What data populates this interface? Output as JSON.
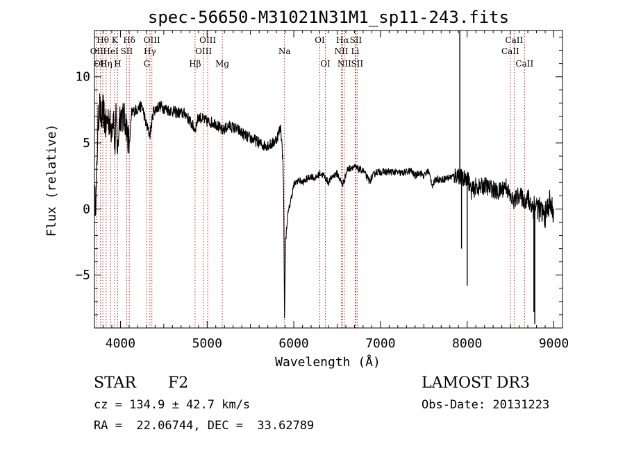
{
  "chart_data": {
    "type": "line",
    "title": "spec-56650-M31021N31M1_sp11-243.fits",
    "xlabel": "Wavelength (Å)",
    "ylabel": "Flux (relative)",
    "xlim": [
      3700,
      9100
    ],
    "ylim": [
      -9,
      13.5
    ],
    "xticks": [
      4000,
      5000,
      6000,
      7000,
      8000,
      9000
    ],
    "xtick_labels": [
      "4000",
      "5000",
      "6000",
      "7000",
      "8000",
      "9000"
    ],
    "yticks": [
      -5,
      0,
      5,
      10
    ],
    "ytick_labels": [
      "−5",
      "0",
      "5",
      "10"
    ],
    "spectrum_anchors": [
      [
        3700,
        0.5
      ],
      [
        3720,
        1.0
      ],
      [
        3740,
        6.5
      ],
      [
        3760,
        7.8
      ],
      [
        3780,
        6.6
      ],
      [
        3800,
        7.5
      ],
      [
        3830,
        6.2
      ],
      [
        3860,
        7.0
      ],
      [
        3890,
        6.0
      ],
      [
        3920,
        7.2
      ],
      [
        3934,
        4.5
      ],
      [
        3950,
        6.9
      ],
      [
        3968,
        4.2
      ],
      [
        3990,
        7.2
      ],
      [
        4020,
        7.0
      ],
      [
        4060,
        6.6
      ],
      [
        4102,
        4.8
      ],
      [
        4130,
        7.3
      ],
      [
        4200,
        7.6
      ],
      [
        4250,
        7.8
      ],
      [
        4300,
        6.3
      ],
      [
        4340,
        5.6
      ],
      [
        4380,
        7.4
      ],
      [
        4450,
        7.8
      ],
      [
        4550,
        7.5
      ],
      [
        4650,
        7.3
      ],
      [
        4750,
        7.2
      ],
      [
        4861,
        6.0
      ],
      [
        4900,
        7.0
      ],
      [
        5000,
        6.6
      ],
      [
        5100,
        6.5
      ],
      [
        5172,
        5.9
      ],
      [
        5250,
        6.3
      ],
      [
        5350,
        6.0
      ],
      [
        5450,
        5.5
      ],
      [
        5550,
        5.2
      ],
      [
        5650,
        4.8
      ],
      [
        5750,
        4.9
      ],
      [
        5800,
        5.3
      ],
      [
        5850,
        6.2
      ],
      [
        5880,
        3.0
      ],
      [
        5893,
        -8.0
      ],
      [
        5905,
        -2.5
      ],
      [
        5930,
        -0.5
      ],
      [
        5960,
        0.5
      ],
      [
        6000,
        1.8
      ],
      [
        6050,
        2.2
      ],
      [
        6100,
        2.0
      ],
      [
        6200,
        2.5
      ],
      [
        6250,
        2.3
      ],
      [
        6300,
        2.7
      ],
      [
        6350,
        2.5
      ],
      [
        6400,
        2.0
      ],
      [
        6450,
        2.5
      ],
      [
        6500,
        2.7
      ],
      [
        6563,
        1.8
      ],
      [
        6620,
        3.0
      ],
      [
        6680,
        3.2
      ],
      [
        6750,
        3.0
      ],
      [
        6800,
        2.9
      ],
      [
        6870,
        2.1
      ],
      [
        6950,
        2.8
      ],
      [
        7050,
        2.8
      ],
      [
        7150,
        2.8
      ],
      [
        7250,
        2.7
      ],
      [
        7350,
        2.9
      ],
      [
        7400,
        2.5
      ],
      [
        7450,
        2.8
      ],
      [
        7500,
        2.5
      ],
      [
        7550,
        2.9
      ],
      [
        7600,
        1.8
      ],
      [
        7650,
        2.3
      ],
      [
        7700,
        2.2
      ],
      [
        7800,
        2.4
      ],
      [
        7850,
        2.5
      ],
      [
        7900,
        2.6
      ],
      [
        7950,
        2.2
      ],
      [
        8000,
        2.5
      ],
      [
        8050,
        1.3
      ],
      [
        8100,
        1.7
      ],
      [
        8150,
        1.6
      ],
      [
        8200,
        1.8
      ],
      [
        8250,
        1.6
      ],
      [
        8300,
        1.5
      ],
      [
        8350,
        1.2
      ],
      [
        8400,
        1.5
      ],
      [
        8450,
        1.8
      ],
      [
        8498,
        0.8
      ],
      [
        8542,
        0.6
      ],
      [
        8600,
        1.1
      ],
      [
        8662,
        0.6
      ],
      [
        8700,
        0.8
      ],
      [
        8750,
        0.2
      ],
      [
        8800,
        0.3
      ],
      [
        8850,
        -0.2
      ],
      [
        8900,
        -0.5
      ],
      [
        8950,
        0.5
      ],
      [
        9000,
        -0.4
      ]
    ],
    "spikes": [
      [
        7915,
        13.5
      ],
      [
        7935,
        -3.0
      ],
      [
        8000,
        -5.8
      ],
      [
        8770,
        -7.8
      ],
      [
        8780,
        -8.7
      ]
    ],
    "lines": [
      {
        "w": 3727,
        "label": "OII",
        "row": 2
      },
      {
        "w": 3770,
        "label": "OII",
        "row": 3
      },
      {
        "w": 3797,
        "label": "Hθ",
        "row": 1
      },
      {
        "w": 3835,
        "label": "Hη",
        "row": 3
      },
      {
        "w": 3889,
        "label": "HeI",
        "row": 2
      },
      {
        "w": 3934,
        "label": "K",
        "row": 1
      },
      {
        "w": 3968,
        "label": "H",
        "row": 3
      },
      {
        "w": 4072,
        "label": "SII",
        "row": 2
      },
      {
        "w": 4102,
        "label": "Hδ",
        "row": 1
      },
      {
        "w": 4304,
        "label": "G",
        "row": 3
      },
      {
        "w": 4340,
        "label": "Hγ",
        "row": 2
      },
      {
        "w": 4363,
        "label": "OIII",
        "row": 1
      },
      {
        "w": 4861,
        "label": "Hβ",
        "row": 3
      },
      {
        "w": 4959,
        "label": "OIII",
        "row": 2
      },
      {
        "w": 5007,
        "label": "OIII",
        "row": 1
      },
      {
        "w": 5175,
        "label": "Mg",
        "row": 3
      },
      {
        "w": 5893,
        "label": "Na",
        "row": 2
      },
      {
        "w": 6300,
        "label": "OI",
        "row": 1
      },
      {
        "w": 6364,
        "label": "OI",
        "row": 3
      },
      {
        "w": 6548,
        "label": "NII",
        "row": 2
      },
      {
        "w": 6563,
        "label": "Hα",
        "row": 1
      },
      {
        "w": 6583,
        "label": "NII",
        "row": 3
      },
      {
        "w": 6708,
        "label": "Li",
        "row": 2
      },
      {
        "w": 6716,
        "label": "SII",
        "row": 1
      },
      {
        "w": 6731,
        "label": "SII",
        "row": 3
      },
      {
        "w": 8498,
        "label": "CaII",
        "row": 2
      },
      {
        "w": 8542,
        "label": "CaII",
        "row": 1
      },
      {
        "w": 8662,
        "label": "CaII",
        "row": 3
      }
    ]
  },
  "info": {
    "class": "STAR",
    "subclass": "F2",
    "survey": "LAMOST DR3",
    "cz": "cz = 134.9 ± 42.7 km/s",
    "obs_date": "Obs-Date: 20131223",
    "radec": "RA =  22.06744, DEC =  33.62789"
  },
  "colors": {
    "line_marker": "#c00000",
    "spectrum": "#000000"
  }
}
